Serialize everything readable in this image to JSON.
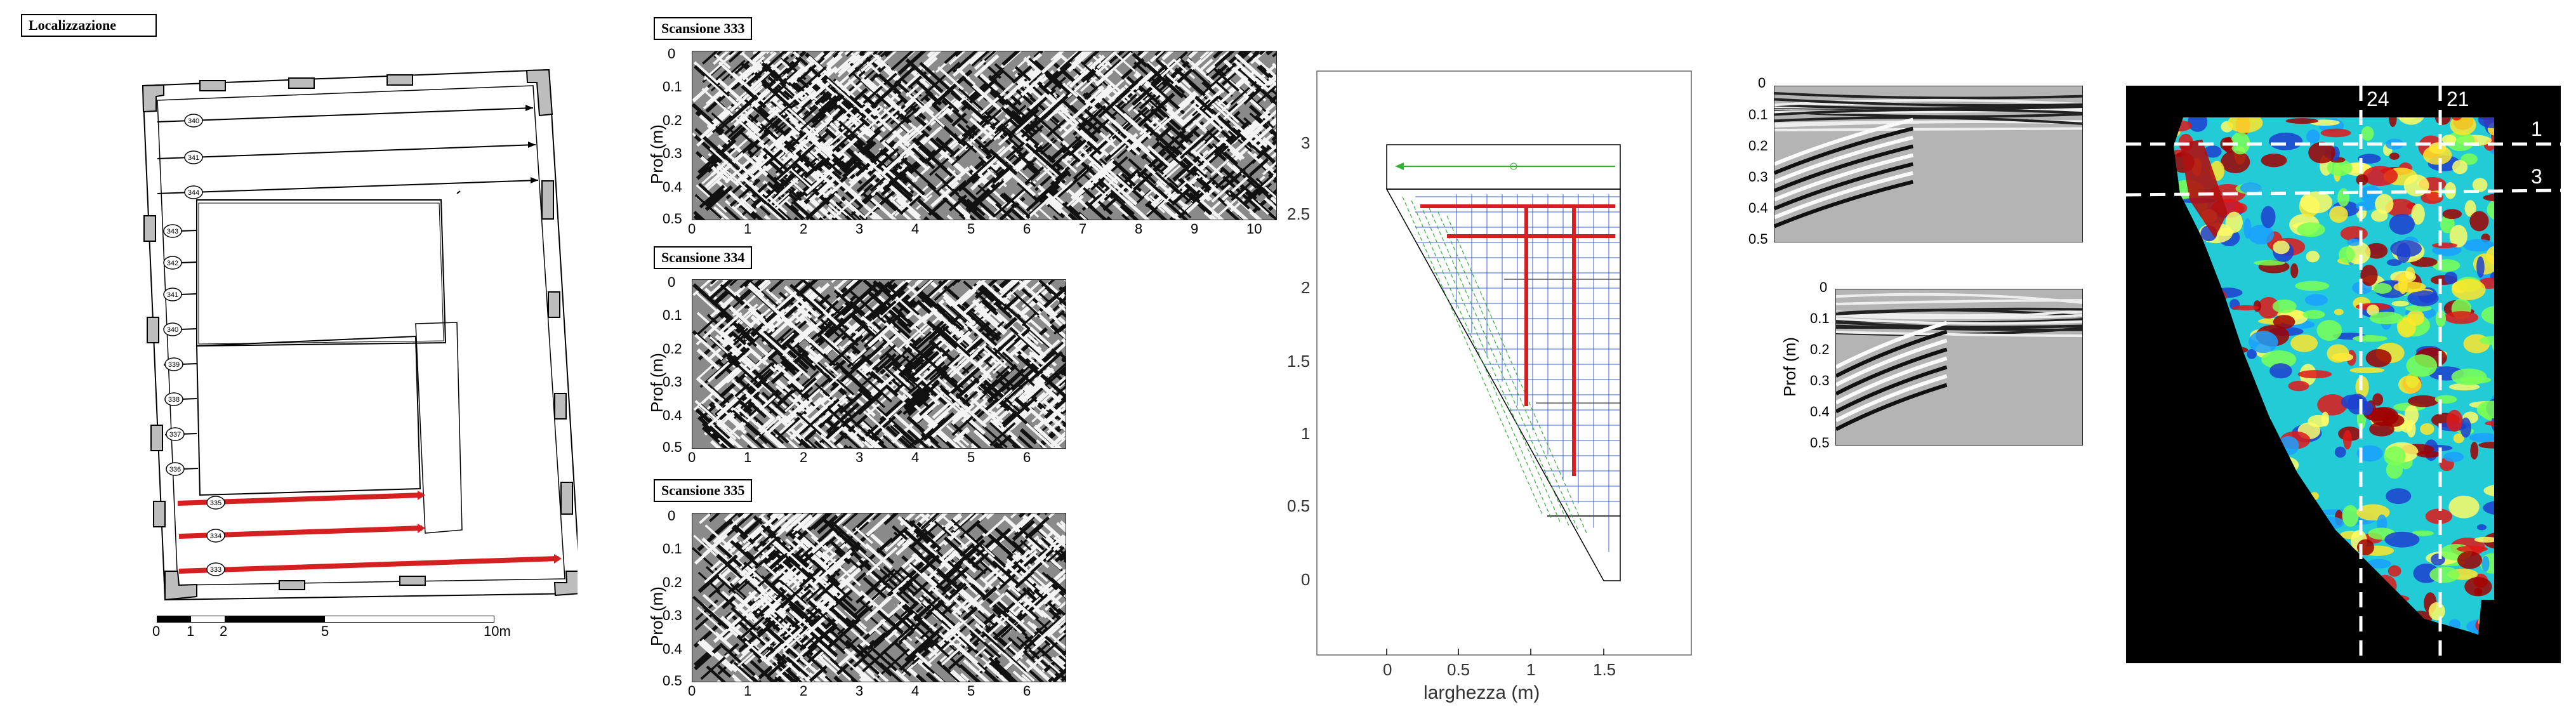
{
  "localization": {
    "title": "Localizzazione",
    "scan_numbers": [
      "340",
      "341",
      "344",
      "343",
      "342",
      "341",
      "340",
      "339",
      "338",
      "337",
      "336",
      "335",
      "334",
      "333"
    ],
    "scale_labels": [
      "0",
      "1",
      "2",
      "5",
      "10m"
    ]
  },
  "scans": [
    {
      "title": "Scansione 333",
      "ylabel": "Prof (m)",
      "yticks": [
        "0",
        "0.1",
        "0.2",
        "0.3",
        "0.4",
        "0.5"
      ],
      "xticks": [
        "0",
        "1",
        "2",
        "3",
        "4",
        "5",
        "6",
        "7",
        "8",
        "9",
        "10"
      ]
    },
    {
      "title": "Scansione 334",
      "ylabel": "Prof (m)",
      "yticks": [
        "0",
        "0.1",
        "0.2",
        "0.3",
        "0.4",
        "0.5"
      ],
      "xticks": [
        "0",
        "1",
        "2",
        "3",
        "4",
        "5",
        "6"
      ]
    },
    {
      "title": "Scansione 335",
      "ylabel": "Prof (m)",
      "yticks": [
        "0",
        "0.1",
        "0.2",
        "0.3",
        "0.4",
        "0.5"
      ],
      "xticks": [
        "0",
        "1",
        "2",
        "3",
        "4",
        "5",
        "6"
      ]
    }
  ],
  "grid_plot": {
    "xlabel": "larghezza (m)",
    "xticks": [
      "0",
      "0.5",
      "1",
      "1.5"
    ],
    "yticks": [
      "0",
      "0.5",
      "1",
      "1.5",
      "2",
      "2.5",
      "3"
    ]
  },
  "small_radars": [
    {
      "yticks": [
        "0",
        "0.1",
        "0.2",
        "0.3",
        "0.4",
        "0.5"
      ]
    },
    {
      "ylabel": "Prof (m)",
      "yticks": [
        "0",
        "0.1",
        "0.2",
        "0.3",
        "0.4",
        "0.5"
      ]
    }
  ],
  "heatmap": {
    "vertical_lines": [
      "24",
      "21"
    ],
    "horizontal_lines": [
      "1",
      "3"
    ]
  },
  "colors": {
    "scan_path_red": "#d42020",
    "grid_blue": "#3a5fd0",
    "grid_green": "#35b035",
    "heatmap_bg": "#000000"
  }
}
